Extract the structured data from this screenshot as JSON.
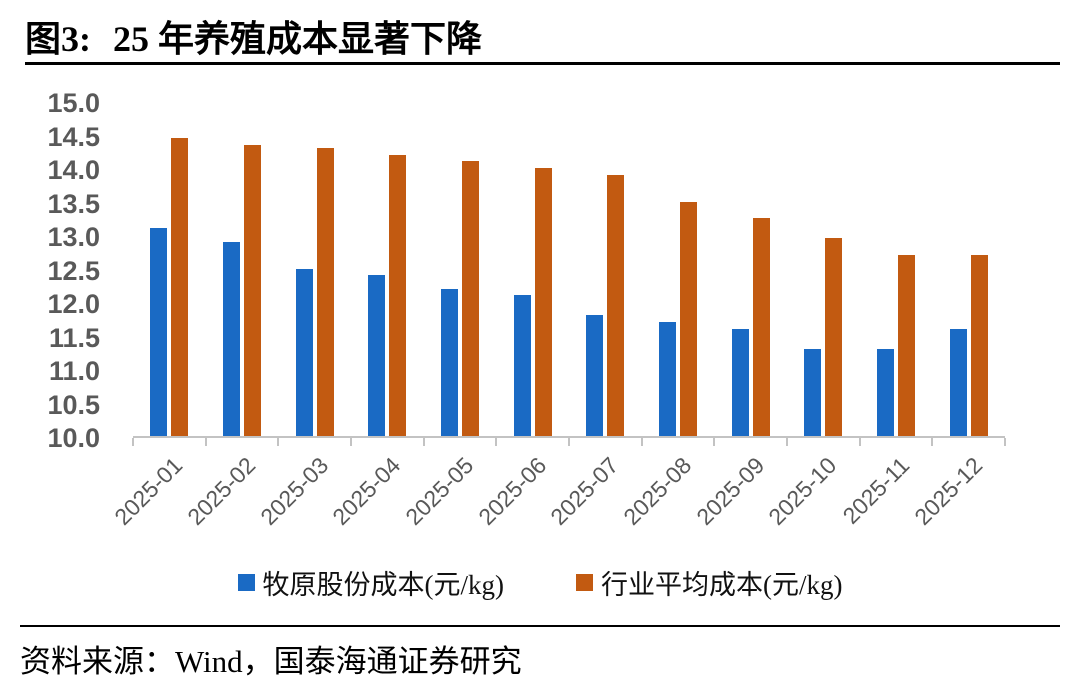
{
  "header": {
    "figure_label": "图3:",
    "title": "25 年养殖成本显著下降"
  },
  "chart_data": {
    "type": "bar",
    "title": "25 年养殖成本显著下降",
    "categories": [
      "2025-01",
      "2025-02",
      "2025-03",
      "2025-04",
      "2025-05",
      "2025-06",
      "2025-07",
      "2025-08",
      "2025-09",
      "2025-10",
      "2025-11",
      "2025-12"
    ],
    "series": [
      {
        "name": "牧原股份成本(元/kg)",
        "color": "#1a6ac4",
        "values": [
          13.1,
          12.9,
          12.5,
          12.4,
          12.2,
          12.1,
          11.8,
          11.7,
          11.6,
          11.3,
          11.3,
          11.6
        ]
      },
      {
        "name": "行业平均成本(元/kg)",
        "color": "#c25a11",
        "values": [
          14.45,
          14.35,
          14.3,
          14.2,
          14.1,
          14.0,
          13.9,
          13.5,
          13.25,
          12.95,
          12.7,
          12.7
        ]
      }
    ],
    "xlabel": "",
    "ylabel": "",
    "ylim": [
      10.0,
      15.0
    ],
    "ytick_step": 0.5,
    "yticks": [
      "15.0",
      "14.5",
      "14.0",
      "13.5",
      "13.0",
      "12.5",
      "12.0",
      "11.5",
      "11.0",
      "10.5",
      "10.0"
    ],
    "grid": false,
    "legend_position": "bottom",
    "axis_label_color": "#595959",
    "axis_line_color": "#c3c3c3"
  },
  "footer": {
    "source": "资料来源：Wind，国泰海通证券研究"
  }
}
